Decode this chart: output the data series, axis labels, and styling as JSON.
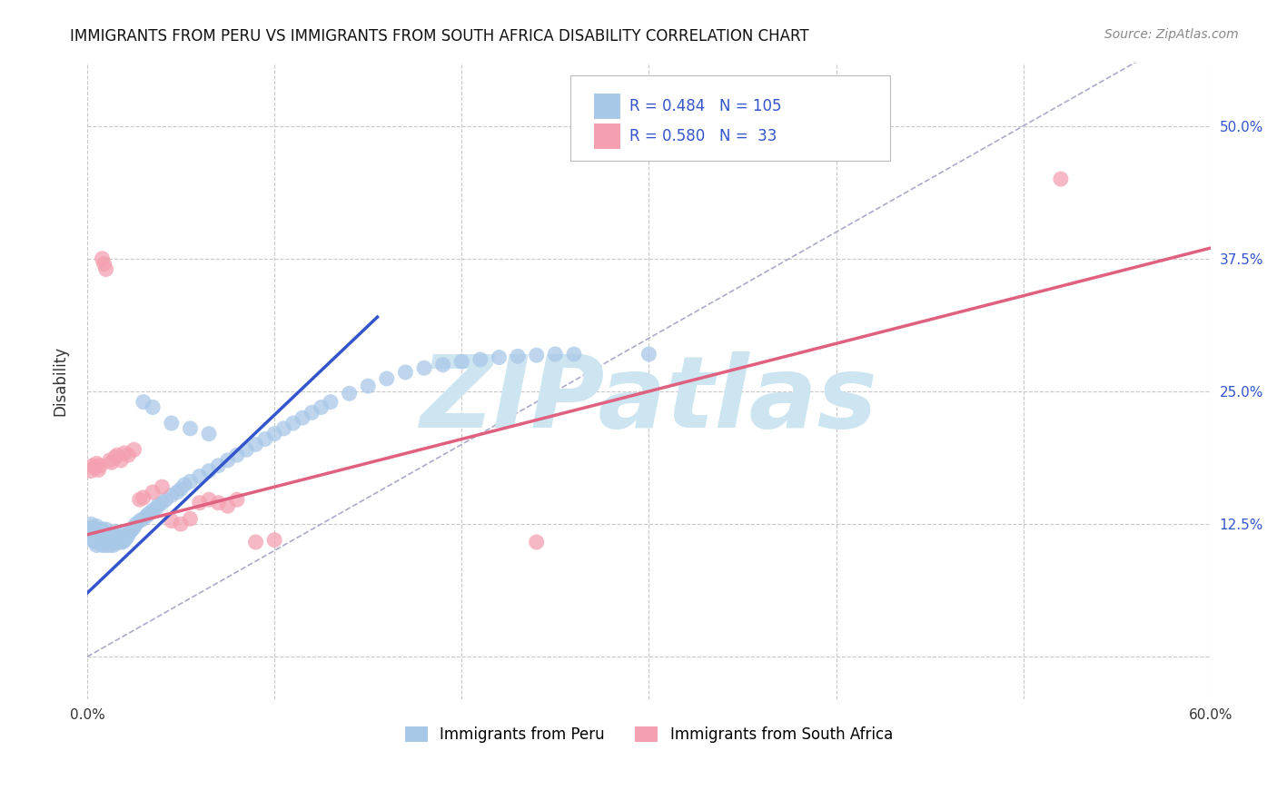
{
  "title": "IMMIGRANTS FROM PERU VS IMMIGRANTS FROM SOUTH AFRICA DISABILITY CORRELATION CHART",
  "source": "Source: ZipAtlas.com",
  "ylabel": "Disability",
  "xlim": [
    0.0,
    0.6
  ],
  "ylim": [
    -0.04,
    0.56
  ],
  "xtick_positions": [
    0.0,
    0.1,
    0.2,
    0.3,
    0.4,
    0.5,
    0.6
  ],
  "xtick_labels": [
    "0.0%",
    "",
    "",
    "",
    "",
    "",
    "60.0%"
  ],
  "ytick_positions": [
    0.0,
    0.125,
    0.25,
    0.375,
    0.5
  ],
  "ytick_labels": [
    "",
    "12.5%",
    "25.0%",
    "37.5%",
    "50.0%"
  ],
  "grid_color": "#c8c8c8",
  "background_color": "#ffffff",
  "watermark_text": "ZIPatlas",
  "watermark_color": "#cce5f0",
  "peru_color": "#a8c8e8",
  "sa_color": "#f4a0b0",
  "peru_line_color": "#3355cc",
  "sa_line_color": "#e06080",
  "diagonal_color": "#aaaacc",
  "R_peru": 0.484,
  "N_peru": 105,
  "R_sa": 0.58,
  "N_sa": 33,
  "legend_text_color": "#3355cc",
  "peru_scatter_x": [
    0.001,
    0.002,
    0.002,
    0.003,
    0.003,
    0.003,
    0.004,
    0.004,
    0.004,
    0.005,
    0.005,
    0.005,
    0.005,
    0.006,
    0.006,
    0.006,
    0.007,
    0.007,
    0.007,
    0.008,
    0.008,
    0.008,
    0.008,
    0.009,
    0.009,
    0.009,
    0.01,
    0.01,
    0.01,
    0.01,
    0.011,
    0.011,
    0.012,
    0.012,
    0.012,
    0.013,
    0.013,
    0.014,
    0.014,
    0.015,
    0.015,
    0.015,
    0.016,
    0.016,
    0.017,
    0.017,
    0.018,
    0.018,
    0.019,
    0.02,
    0.02,
    0.021,
    0.022,
    0.023,
    0.024,
    0.025,
    0.026,
    0.028,
    0.03,
    0.032,
    0.033,
    0.035,
    0.037,
    0.038,
    0.04,
    0.042,
    0.045,
    0.048,
    0.05,
    0.052,
    0.055,
    0.06,
    0.065,
    0.07,
    0.075,
    0.08,
    0.085,
    0.09,
    0.095,
    0.1,
    0.105,
    0.11,
    0.115,
    0.12,
    0.125,
    0.13,
    0.14,
    0.15,
    0.16,
    0.17,
    0.18,
    0.19,
    0.2,
    0.21,
    0.22,
    0.23,
    0.24,
    0.25,
    0.26,
    0.3,
    0.03,
    0.035,
    0.045,
    0.055,
    0.065
  ],
  "peru_scatter_y": [
    0.12,
    0.115,
    0.125,
    0.11,
    0.118,
    0.122,
    0.108,
    0.115,
    0.12,
    0.105,
    0.112,
    0.118,
    0.123,
    0.11,
    0.115,
    0.12,
    0.108,
    0.113,
    0.118,
    0.105,
    0.11,
    0.115,
    0.12,
    0.108,
    0.112,
    0.117,
    0.105,
    0.11,
    0.115,
    0.12,
    0.108,
    0.113,
    0.105,
    0.11,
    0.115,
    0.108,
    0.113,
    0.105,
    0.11,
    0.108,
    0.113,
    0.118,
    0.108,
    0.113,
    0.108,
    0.112,
    0.108,
    0.112,
    0.108,
    0.11,
    0.115,
    0.112,
    0.115,
    0.118,
    0.12,
    0.122,
    0.125,
    0.128,
    0.13,
    0.133,
    0.135,
    0.138,
    0.14,
    0.143,
    0.145,
    0.148,
    0.152,
    0.155,
    0.158,
    0.162,
    0.165,
    0.17,
    0.175,
    0.18,
    0.185,
    0.19,
    0.195,
    0.2,
    0.205,
    0.21,
    0.215,
    0.22,
    0.225,
    0.23,
    0.235,
    0.24,
    0.248,
    0.255,
    0.262,
    0.268,
    0.272,
    0.275,
    0.278,
    0.28,
    0.282,
    0.283,
    0.284,
    0.285,
    0.285,
    0.285,
    0.24,
    0.235,
    0.22,
    0.215,
    0.21
  ],
  "sa_scatter_x": [
    0.002,
    0.003,
    0.004,
    0.005,
    0.006,
    0.007,
    0.008,
    0.009,
    0.01,
    0.012,
    0.013,
    0.015,
    0.016,
    0.018,
    0.02,
    0.022,
    0.025,
    0.028,
    0.03,
    0.035,
    0.04,
    0.045,
    0.05,
    0.055,
    0.06,
    0.065,
    0.07,
    0.075,
    0.08,
    0.09,
    0.1,
    0.24,
    0.52
  ],
  "sa_scatter_y": [
    0.175,
    0.18,
    0.178,
    0.182,
    0.176,
    0.18,
    0.375,
    0.37,
    0.365,
    0.185,
    0.183,
    0.188,
    0.19,
    0.185,
    0.192,
    0.19,
    0.195,
    0.148,
    0.15,
    0.155,
    0.16,
    0.128,
    0.125,
    0.13,
    0.145,
    0.148,
    0.145,
    0.142,
    0.148,
    0.108,
    0.11,
    0.108,
    0.45
  ],
  "peru_line_x": [
    0.0,
    0.155
  ],
  "peru_line_y": [
    0.06,
    0.32
  ],
  "sa_line_x": [
    0.0,
    0.6
  ],
  "sa_line_y": [
    0.115,
    0.385
  ],
  "diag_line_x": [
    0.0,
    0.56
  ],
  "diag_line_y": [
    0.0,
    0.56
  ]
}
